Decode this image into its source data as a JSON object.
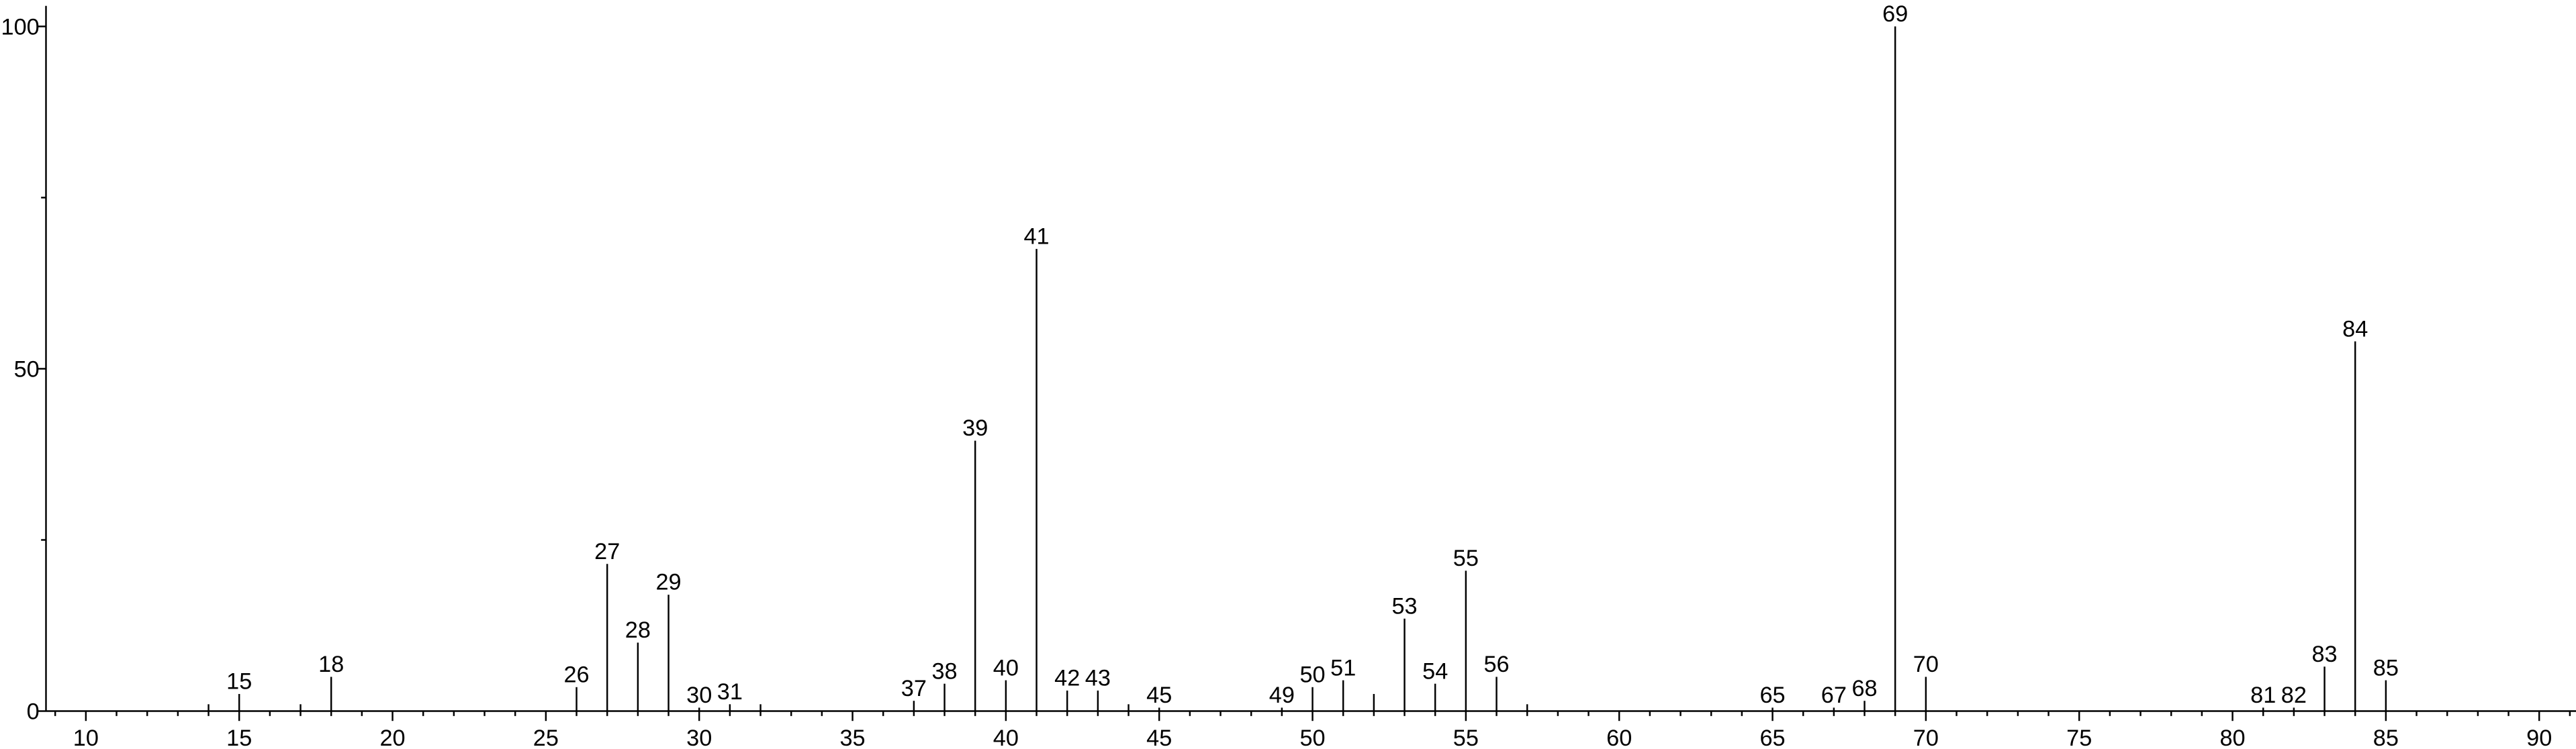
{
  "chart_data": {
    "type": "stem",
    "x": [
      14,
      15,
      17,
      18,
      26,
      27,
      28,
      29,
      30,
      31,
      32,
      37,
      38,
      39,
      40,
      41,
      42,
      43,
      44,
      45,
      49,
      50,
      51,
      52,
      53,
      54,
      55,
      56,
      57,
      65,
      67,
      68,
      69,
      70,
      81,
      82,
      83,
      84,
      85
    ],
    "values": [
      1,
      2.5,
      1,
      5,
      3.5,
      21.5,
      10,
      17,
      0.5,
      1,
      1,
      1.5,
      4,
      39.5,
      4.5,
      67.5,
      3,
      3,
      1,
      0.5,
      0.5,
      3.5,
      4.5,
      2.5,
      13.5,
      4,
      20.5,
      5,
      1,
      0.5,
      0.5,
      1.5,
      100,
      5,
      0.5,
      0.5,
      6.5,
      54,
      4.5
    ],
    "labeled": [
      false,
      true,
      false,
      true,
      true,
      true,
      true,
      true,
      true,
      true,
      false,
      true,
      true,
      true,
      true,
      true,
      true,
      true,
      false,
      true,
      true,
      true,
      true,
      false,
      true,
      true,
      true,
      true,
      false,
      true,
      true,
      true,
      true,
      true,
      true,
      true,
      true,
      true,
      true
    ],
    "color": "#000000",
    "xlim": [
      8.7,
      91.2
    ],
    "xticks": [
      10,
      15,
      20,
      25,
      30,
      35,
      40,
      45,
      50,
      55,
      60,
      65,
      70,
      75,
      80,
      85,
      90
    ],
    "xminorticks": [
      9,
      11,
      12,
      13,
      14,
      16,
      17,
      18,
      19,
      21,
      22,
      23,
      24,
      26,
      27,
      28,
      29,
      31,
      32,
      33,
      34,
      36,
      37,
      38,
      39,
      41,
      42,
      43,
      44,
      46,
      47,
      48,
      49,
      51,
      52,
      53,
      54,
      56,
      57,
      58,
      59,
      61,
      62,
      63,
      64,
      66,
      67,
      68,
      69,
      71,
      72,
      73,
      74,
      76,
      77,
      78,
      79,
      81,
      82,
      83,
      84,
      86,
      87,
      88,
      89,
      91
    ],
    "ylim": [
      0,
      103
    ],
    "yticks": [
      0,
      50,
      100
    ],
    "yminorticks": [
      25,
      75
    ],
    "grid": false
  }
}
